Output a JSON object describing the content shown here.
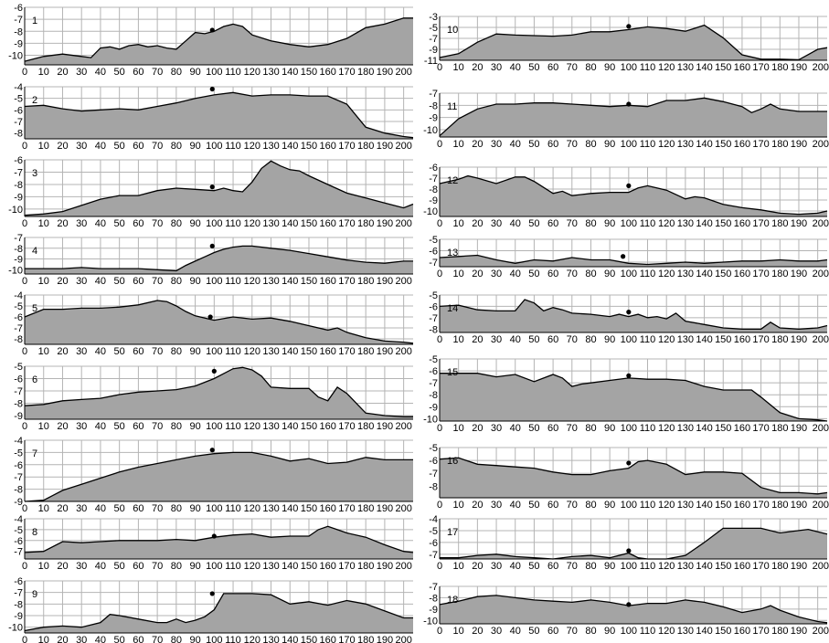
{
  "colors": {
    "fill": "#a4a4a4",
    "line": "#000000",
    "grid": "#b4b4b4",
    "plot_bg": "#ffffff",
    "marker": "#000000"
  },
  "x_ticks": [
    0,
    10,
    20,
    30,
    40,
    50,
    60,
    70,
    80,
    90,
    100,
    110,
    120,
    130,
    140,
    150,
    160,
    170,
    180,
    190,
    200
  ],
  "chart_data": [
    {
      "type": "area",
      "id": "1",
      "label": "1",
      "xlim": [
        0,
        205
      ],
      "ylim": [
        -10.8,
        -6
      ],
      "yticks": [
        -6,
        -7,
        -8,
        -9,
        -10
      ],
      "marker": {
        "x": 99,
        "y": -7.9
      },
      "x": [
        0,
        10,
        20,
        30,
        35,
        40,
        45,
        50,
        55,
        60,
        65,
        70,
        75,
        80,
        85,
        90,
        95,
        100,
        105,
        110,
        115,
        120,
        130,
        140,
        150,
        160,
        170,
        180,
        190,
        200,
        205
      ],
      "y": [
        -10.5,
        -10.1,
        -9.9,
        -10.1,
        -10.2,
        -9.4,
        -9.3,
        -9.5,
        -9.2,
        -9.1,
        -9.3,
        -9.2,
        -9.4,
        -9.5,
        -8.8,
        -8.1,
        -8.2,
        -8.0,
        -7.6,
        -7.4,
        -7.6,
        -8.3,
        -8.8,
        -9.1,
        -9.3,
        -9.1,
        -8.6,
        -7.7,
        -7.4,
        -6.9,
        -6.9
      ]
    },
    {
      "type": "area",
      "id": "2",
      "label": "2",
      "xlim": [
        0,
        205
      ],
      "ylim": [
        -8.5,
        -4
      ],
      "yticks": [
        -4,
        -5,
        -6,
        -7,
        -8
      ],
      "marker": {
        "x": 99,
        "y": -4.2
      },
      "x": [
        0,
        10,
        20,
        30,
        40,
        50,
        60,
        70,
        80,
        90,
        100,
        110,
        120,
        130,
        140,
        150,
        160,
        170,
        180,
        190,
        200,
        205
      ],
      "y": [
        -5.7,
        -5.6,
        -5.9,
        -6.1,
        -6.0,
        -5.9,
        -6.0,
        -5.7,
        -5.4,
        -5.0,
        -4.7,
        -4.5,
        -4.8,
        -4.7,
        -4.7,
        -4.8,
        -4.8,
        -5.5,
        -7.5,
        -8.0,
        -8.3,
        -8.4
      ]
    },
    {
      "type": "area",
      "id": "3",
      "label": "3",
      "xlim": [
        0,
        205
      ],
      "ylim": [
        -10.6,
        -6
      ],
      "yticks": [
        -6,
        -7,
        -8,
        -9,
        -10
      ],
      "marker": {
        "x": 99,
        "y": -8.2
      },
      "x": [
        0,
        10,
        20,
        30,
        40,
        50,
        60,
        70,
        80,
        90,
        100,
        105,
        110,
        115,
        120,
        125,
        130,
        135,
        140,
        145,
        150,
        160,
        170,
        180,
        190,
        200,
        205
      ],
      "y": [
        -10.5,
        -10.4,
        -10.2,
        -9.7,
        -9.2,
        -8.9,
        -8.9,
        -8.5,
        -8.3,
        -8.4,
        -8.5,
        -8.3,
        -8.5,
        -8.6,
        -7.8,
        -6.7,
        -6.1,
        -6.5,
        -6.8,
        -6.9,
        -7.3,
        -8.0,
        -8.7,
        -9.1,
        -9.5,
        -9.9,
        -9.6
      ]
    },
    {
      "type": "area",
      "id": "4",
      "label": "4",
      "xlim": [
        0,
        205
      ],
      "ylim": [
        -10.4,
        -7
      ],
      "yticks": [
        -7,
        -8,
        -9,
        -10
      ],
      "marker": {
        "x": 99,
        "y": -7.8
      },
      "x": [
        0,
        10,
        20,
        30,
        40,
        50,
        60,
        70,
        80,
        85,
        90,
        95,
        100,
        105,
        110,
        115,
        120,
        130,
        140,
        150,
        160,
        170,
        180,
        190,
        200,
        205
      ],
      "y": [
        -9.9,
        -9.9,
        -9.9,
        -9.8,
        -9.9,
        -9.9,
        -9.9,
        -10.0,
        -10.1,
        -9.6,
        -9.2,
        -8.8,
        -8.4,
        -8.1,
        -7.9,
        -7.8,
        -7.8,
        -8.0,
        -8.2,
        -8.5,
        -8.8,
        -9.1,
        -9.3,
        -9.4,
        -9.2,
        -9.2
      ]
    },
    {
      "type": "area",
      "id": "5",
      "label": "5",
      "xlim": [
        0,
        205
      ],
      "ylim": [
        -8.5,
        -4
      ],
      "yticks": [
        -4,
        -5,
        -6,
        -7,
        -8
      ],
      "marker": {
        "x": 98,
        "y": -6.0
      },
      "x": [
        0,
        10,
        20,
        30,
        40,
        50,
        60,
        70,
        75,
        80,
        85,
        90,
        100,
        110,
        120,
        130,
        140,
        150,
        160,
        165,
        170,
        180,
        190,
        200,
        205
      ],
      "y": [
        -6.0,
        -5.3,
        -5.3,
        -5.2,
        -5.2,
        -5.1,
        -4.9,
        -4.5,
        -4.6,
        -5.0,
        -5.5,
        -5.9,
        -6.3,
        -6.0,
        -6.2,
        -6.1,
        -6.4,
        -6.8,
        -7.2,
        -7.0,
        -7.4,
        -7.9,
        -8.2,
        -8.3,
        -8.4
      ]
    },
    {
      "type": "area",
      "id": "6",
      "label": "6",
      "xlim": [
        0,
        205
      ],
      "ylim": [
        -9.3,
        -5
      ],
      "yticks": [
        -5,
        -6,
        -7,
        -8,
        -9
      ],
      "marker": {
        "x": 100,
        "y": -5.4
      },
      "x": [
        0,
        10,
        20,
        30,
        40,
        50,
        60,
        70,
        80,
        90,
        100,
        105,
        110,
        115,
        120,
        125,
        130,
        140,
        150,
        155,
        160,
        165,
        170,
        180,
        190,
        200,
        205
      ],
      "y": [
        -8.2,
        -8.1,
        -7.8,
        -7.7,
        -7.6,
        -7.3,
        -7.1,
        -7.0,
        -6.9,
        -6.6,
        -6.0,
        -5.6,
        -5.2,
        -5.1,
        -5.3,
        -5.8,
        -6.7,
        -6.8,
        -6.8,
        -7.5,
        -7.8,
        -6.7,
        -7.2,
        -8.8,
        -9.0,
        -9.1,
        -9.1
      ]
    },
    {
      "type": "area",
      "id": "7",
      "label": "7",
      "xlim": [
        0,
        205
      ],
      "ylim": [
        -9,
        -4
      ],
      "yticks": [
        -4,
        -5,
        -6,
        -7,
        -8,
        -9
      ],
      "marker": {
        "x": 99,
        "y": -4.8
      },
      "x": [
        0,
        10,
        15,
        20,
        30,
        40,
        50,
        60,
        70,
        80,
        90,
        100,
        110,
        120,
        130,
        140,
        150,
        160,
        170,
        180,
        190,
        200,
        205
      ],
      "y": [
        -9.0,
        -8.9,
        -8.5,
        -8.1,
        -7.6,
        -7.1,
        -6.6,
        -6.2,
        -5.9,
        -5.6,
        -5.3,
        -5.1,
        -5.0,
        -5.0,
        -5.3,
        -5.7,
        -5.5,
        -5.9,
        -5.8,
        -5.4,
        -5.6,
        -5.6,
        -5.6
      ]
    },
    {
      "type": "area",
      "id": "8",
      "label": "8",
      "xlim": [
        0,
        205
      ],
      "ylim": [
        -7.7,
        -4
      ],
      "yticks": [
        -4,
        -5,
        -6,
        -7
      ],
      "marker": {
        "x": 100,
        "y": -5.6
      },
      "x": [
        0,
        10,
        20,
        30,
        40,
        50,
        60,
        70,
        80,
        90,
        100,
        110,
        120,
        130,
        140,
        150,
        155,
        160,
        165,
        170,
        180,
        190,
        200,
        205
      ],
      "y": [
        -7.1,
        -7.0,
        -6.1,
        -6.2,
        -6.1,
        -6.0,
        -6.0,
        -6.0,
        -5.9,
        -6.0,
        -5.7,
        -5.5,
        -5.4,
        -5.7,
        -5.6,
        -5.6,
        -5.0,
        -4.7,
        -5.0,
        -5.3,
        -5.7,
        -6.4,
        -7.0,
        -7.1
      ]
    },
    {
      "type": "area",
      "id": "9",
      "label": "9",
      "xlim": [
        0,
        205
      ],
      "ylim": [
        -10.5,
        -6
      ],
      "yticks": [
        -6,
        -7,
        -8,
        -9,
        -10
      ],
      "marker": {
        "x": 99,
        "y": -7.1
      },
      "x": [
        0,
        10,
        20,
        30,
        40,
        45,
        50,
        60,
        70,
        75,
        80,
        85,
        90,
        95,
        100,
        105,
        110,
        120,
        130,
        140,
        150,
        160,
        170,
        180,
        190,
        200,
        205
      ],
      "y": [
        -10.3,
        -10.0,
        -9.9,
        -10.0,
        -9.6,
        -8.9,
        -9.0,
        -9.3,
        -9.6,
        -9.6,
        -9.3,
        -9.6,
        -9.4,
        -9.1,
        -8.5,
        -7.1,
        -7.1,
        -7.1,
        -7.2,
        -8.0,
        -7.8,
        -8.1,
        -7.7,
        -8.0,
        -8.6,
        -9.2,
        -9.2
      ]
    },
    {
      "type": "area",
      "id": "10",
      "label": "10",
      "xlim": [
        0,
        205
      ],
      "ylim": [
        -11,
        -3
      ],
      "yticks": [
        -3,
        -5,
        -7,
        -9,
        -11
      ],
      "marker": {
        "x": 100,
        "y": -4.8
      },
      "x": [
        0,
        10,
        20,
        30,
        40,
        50,
        60,
        70,
        80,
        90,
        100,
        110,
        120,
        130,
        140,
        150,
        160,
        170,
        180,
        190,
        200,
        205
      ],
      "y": [
        -10.5,
        -9.8,
        -7.7,
        -6.2,
        -6.4,
        -6.5,
        -6.6,
        -6.4,
        -5.8,
        -5.8,
        -5.4,
        -4.9,
        -5.2,
        -5.7,
        -4.6,
        -6.9,
        -10.0,
        -10.8,
        -10.8,
        -10.9,
        -9.0,
        -8.7
      ]
    },
    {
      "type": "area",
      "id": "11",
      "label": "11",
      "xlim": [
        0,
        205
      ],
      "ylim": [
        -10.6,
        -7
      ],
      "yticks": [
        -7,
        -8,
        -9,
        -10
      ],
      "marker": {
        "x": 100,
        "y": -7.9
      },
      "x": [
        0,
        10,
        20,
        30,
        40,
        50,
        60,
        70,
        80,
        90,
        100,
        110,
        120,
        130,
        140,
        150,
        160,
        165,
        170,
        175,
        180,
        190,
        200,
        205
      ],
      "y": [
        -10.5,
        -9.1,
        -8.3,
        -7.9,
        -7.9,
        -7.8,
        -7.8,
        -7.9,
        -8.0,
        -8.1,
        -8.0,
        -8.1,
        -7.6,
        -7.6,
        -7.4,
        -7.7,
        -8.1,
        -8.6,
        -8.3,
        -7.9,
        -8.3,
        -8.5,
        -8.5,
        -8.5
      ]
    },
    {
      "type": "area",
      "id": "12",
      "label": "12",
      "xlim": [
        0,
        205
      ],
      "ylim": [
        -10.5,
        -6
      ],
      "yticks": [
        -6,
        -7,
        -8,
        -9,
        -10
      ],
      "marker": {
        "x": 100,
        "y": -7.7
      },
      "x": [
        0,
        10,
        15,
        20,
        30,
        40,
        45,
        50,
        60,
        65,
        70,
        80,
        90,
        100,
        105,
        110,
        120,
        130,
        135,
        140,
        150,
        160,
        170,
        180,
        190,
        200,
        205
      ],
      "y": [
        -7.5,
        -7.1,
        -6.8,
        -7.0,
        -7.5,
        -6.9,
        -6.9,
        -7.3,
        -8.4,
        -8.2,
        -8.6,
        -8.4,
        -8.3,
        -8.3,
        -7.9,
        -7.7,
        -8.1,
        -8.9,
        -8.7,
        -8.8,
        -9.4,
        -9.7,
        -9.9,
        -10.2,
        -10.3,
        -10.2,
        -10.0
      ]
    },
    {
      "type": "area",
      "id": "13",
      "label": "13",
      "xlim": [
        0,
        205
      ],
      "ylim": [
        -7.4,
        -5
      ],
      "yticks": [
        -5,
        -6,
        -7
      ],
      "marker": {
        "x": 97,
        "y": -6.5
      },
      "x": [
        0,
        10,
        20,
        30,
        40,
        50,
        60,
        70,
        80,
        90,
        100,
        110,
        120,
        130,
        140,
        150,
        160,
        170,
        180,
        190,
        200,
        205
      ],
      "y": [
        -6.6,
        -6.5,
        -6.4,
        -6.8,
        -7.1,
        -6.8,
        -6.9,
        -6.6,
        -6.8,
        -6.8,
        -7.1,
        -7.2,
        -7.1,
        -7.0,
        -7.1,
        -7.0,
        -6.9,
        -6.9,
        -6.8,
        -6.9,
        -6.9,
        -6.8
      ]
    },
    {
      "type": "area",
      "id": "14",
      "label": "14",
      "xlim": [
        0,
        205
      ],
      "ylim": [
        -8.3,
        -5
      ],
      "yticks": [
        -5,
        -6,
        -7,
        -8
      ],
      "marker": {
        "x": 100,
        "y": -6.5
      },
      "x": [
        0,
        10,
        20,
        30,
        40,
        45,
        50,
        55,
        60,
        65,
        70,
        80,
        90,
        95,
        100,
        105,
        110,
        115,
        120,
        125,
        130,
        140,
        150,
        160,
        170,
        175,
        180,
        190,
        200,
        205
      ],
      "y": [
        -6.0,
        -5.9,
        -6.3,
        -6.4,
        -6.4,
        -5.4,
        -5.7,
        -6.4,
        -6.1,
        -6.3,
        -6.6,
        -6.7,
        -6.9,
        -6.7,
        -6.9,
        -6.7,
        -7.0,
        -6.9,
        -7.1,
        -6.6,
        -7.3,
        -7.6,
        -7.9,
        -8.0,
        -8.0,
        -7.4,
        -7.9,
        -8.0,
        -7.9,
        -7.7
      ]
    },
    {
      "type": "area",
      "id": "15",
      "label": "15",
      "xlim": [
        0,
        205
      ],
      "ylim": [
        -10.2,
        -5
      ],
      "yticks": [
        -5,
        -6,
        -7,
        -8,
        -9,
        -10
      ],
      "marker": {
        "x": 100,
        "y": -6.4
      },
      "x": [
        0,
        10,
        20,
        30,
        40,
        50,
        60,
        65,
        70,
        75,
        80,
        90,
        100,
        110,
        120,
        130,
        140,
        150,
        160,
        165,
        170,
        180,
        190,
        200,
        205
      ],
      "y": [
        -6.2,
        -6.2,
        -6.2,
        -6.5,
        -6.3,
        -6.9,
        -6.3,
        -6.6,
        -7.3,
        -7.1,
        -7.0,
        -6.8,
        -6.6,
        -6.7,
        -6.7,
        -6.8,
        -7.3,
        -7.6,
        -7.6,
        -7.6,
        -8.2,
        -9.5,
        -10.0,
        -10.1,
        -10.2
      ]
    },
    {
      "type": "area",
      "id": "16",
      "label": "16",
      "xlim": [
        0,
        205
      ],
      "ylim": [
        -8.9,
        -5
      ],
      "yticks": [
        -5,
        -6,
        -7,
        -8
      ],
      "marker": {
        "x": 100,
        "y": -6.2
      },
      "x": [
        0,
        10,
        20,
        30,
        40,
        50,
        60,
        70,
        80,
        90,
        100,
        105,
        110,
        120,
        130,
        140,
        150,
        160,
        170,
        180,
        190,
        200,
        205
      ],
      "y": [
        -5.9,
        -5.8,
        -6.3,
        -6.4,
        -6.5,
        -6.6,
        -6.9,
        -7.1,
        -7.1,
        -6.8,
        -6.6,
        -6.1,
        -6.0,
        -6.3,
        -7.1,
        -6.9,
        -6.9,
        -7.0,
        -8.1,
        -8.5,
        -8.5,
        -8.6,
        -8.5
      ]
    },
    {
      "type": "area",
      "id": "17",
      "label": "17",
      "xlim": [
        0,
        205
      ],
      "ylim": [
        -7.4,
        -4
      ],
      "yticks": [
        -4,
        -5,
        -6,
        -7
      ],
      "marker": {
        "x": 100,
        "y": -6.7
      },
      "x": [
        0,
        10,
        20,
        30,
        40,
        50,
        60,
        70,
        80,
        90,
        100,
        105,
        110,
        120,
        130,
        140,
        150,
        160,
        170,
        180,
        190,
        195,
        200,
        205
      ],
      "y": [
        -7.3,
        -7.3,
        -7.1,
        -7.0,
        -7.2,
        -7.3,
        -7.4,
        -7.2,
        -7.1,
        -7.3,
        -6.9,
        -7.3,
        -7.4,
        -7.4,
        -7.1,
        -6.0,
        -4.8,
        -4.8,
        -4.8,
        -5.2,
        -5.0,
        -4.9,
        -5.1,
        -5.3
      ]
    },
    {
      "type": "area",
      "id": "18",
      "label": "18",
      "xlim": [
        0,
        205
      ],
      "ylim": [
        -10.3,
        -7
      ],
      "yticks": [
        -7,
        -8,
        -9,
        -10
      ],
      "marker": {
        "x": 100,
        "y": -8.6
      },
      "x": [
        0,
        10,
        20,
        30,
        40,
        50,
        60,
        70,
        80,
        90,
        100,
        110,
        120,
        130,
        135,
        140,
        150,
        160,
        170,
        175,
        180,
        190,
        200,
        205
      ],
      "y": [
        -8.6,
        -8.3,
        -7.9,
        -7.8,
        -8.0,
        -8.2,
        -8.3,
        -8.4,
        -8.2,
        -8.4,
        -8.7,
        -8.5,
        -8.5,
        -8.2,
        -8.3,
        -8.4,
        -8.8,
        -9.3,
        -9.0,
        -8.7,
        -9.1,
        -9.7,
        -10.1,
        -10.2
      ]
    }
  ]
}
